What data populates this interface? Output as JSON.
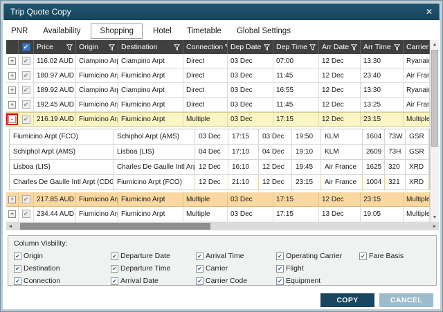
{
  "window": {
    "title": "Trip Quote Copy",
    "close": "✕"
  },
  "tabs": [
    {
      "label": "PNR",
      "selected": false
    },
    {
      "label": "Availability",
      "selected": false
    },
    {
      "label": "Shopping",
      "selected": true
    },
    {
      "label": "Hotel",
      "selected": false
    },
    {
      "label": "Timetable",
      "selected": false
    },
    {
      "label": "Global Settings",
      "selected": false
    }
  ],
  "table": {
    "select_all_checked": true,
    "columns": [
      {
        "key": "price",
        "label": "Price"
      },
      {
        "key": "origin",
        "label": "Origin"
      },
      {
        "key": "destination",
        "label": "Destination"
      },
      {
        "key": "connection",
        "label": "Connection"
      },
      {
        "key": "dep_date",
        "label": "Dep Date"
      },
      {
        "key": "dep_time",
        "label": "Dep Time"
      },
      {
        "key": "arr_date",
        "label": "Arr Date"
      },
      {
        "key": "arr_time",
        "label": "Arr Time"
      },
      {
        "key": "carrier",
        "label": "Carrier"
      }
    ],
    "rows": [
      {
        "expand": "+",
        "checked": true,
        "highlight": "none",
        "annotated": false,
        "expanded": false,
        "cells": {
          "price": "116.02 AUD",
          "origin": "Ciampino Arpt",
          "destination": "Ciampino Arpt",
          "connection": "Direct",
          "dep_date": "03 Dec",
          "dep_time": "07:00",
          "arr_date": "12 Dec",
          "arr_time": "13:30",
          "carrier": "Ryanair"
        }
      },
      {
        "expand": "+",
        "checked": true,
        "highlight": "none",
        "annotated": false,
        "expanded": false,
        "cells": {
          "price": "180.97 AUD",
          "origin": "Fiumicino Arpt",
          "destination": "Fiumicino Arpt",
          "connection": "Direct",
          "dep_date": "03 Dec",
          "dep_time": "11:45",
          "arr_date": "12 Dec",
          "arr_time": "23:40",
          "carrier": "Air France"
        }
      },
      {
        "expand": "+",
        "checked": true,
        "highlight": "none",
        "annotated": false,
        "expanded": false,
        "cells": {
          "price": "189.92 AUD",
          "origin": "Ciampino Arpt",
          "destination": "Ciampino Arpt",
          "connection": "Direct",
          "dep_date": "03 Dec",
          "dep_time": "16:55",
          "arr_date": "12 Dec",
          "arr_time": "13:30",
          "carrier": "Ryanair"
        }
      },
      {
        "expand": "+",
        "checked": true,
        "highlight": "none",
        "annotated": false,
        "expanded": false,
        "cells": {
          "price": "192.45 AUD",
          "origin": "Fiumicino Arpt",
          "destination": "Fiumicino Arpt",
          "connection": "Direct",
          "dep_date": "03 Dec",
          "dep_time": "11:45",
          "arr_date": "12 Dec",
          "arr_time": "13:25",
          "carrier": "Air France"
        }
      },
      {
        "expand": "-",
        "checked": true,
        "highlight": "yellow",
        "annotated": true,
        "expanded": true,
        "cells": {
          "price": "216.19 AUD",
          "origin": "Fiumicino Arpt",
          "destination": "Fiumicino Arpt",
          "connection": "Multiple",
          "dep_date": "03 Dec",
          "dep_time": "17:15",
          "arr_date": "12 Dec",
          "arr_time": "23:15",
          "carrier": "Multiple"
        }
      },
      {
        "expand": "+",
        "checked": true,
        "highlight": "orange",
        "annotated": false,
        "expanded": false,
        "cells": {
          "price": "217.85 AUD",
          "origin": "Fiumicino Arpt",
          "destination": "Fiumicino Arpt",
          "connection": "Multiple",
          "dep_date": "03 Dec",
          "dep_time": "17:15",
          "arr_date": "12 Dec",
          "arr_time": "23:15",
          "carrier": "Multiple"
        }
      },
      {
        "expand": "+",
        "checked": true,
        "highlight": "none",
        "annotated": false,
        "expanded": false,
        "cells": {
          "price": "234.44 AUD",
          "origin": "Fiumicino Arpt",
          "destination": "Fiumicino Arpt",
          "connection": "Multiple",
          "dep_date": "03 Dec",
          "dep_time": "17:15",
          "arr_date": "13 Dec",
          "arr_time": "19:05",
          "carrier": "Multiple"
        }
      }
    ]
  },
  "detail_table": {
    "column_keys": [
      "origin",
      "destination",
      "dep_date",
      "dep_time",
      "arr_date",
      "arr_time",
      "carrier",
      "flight",
      "equipment",
      "fare_basis"
    ],
    "rows": [
      {
        "highlight": "none",
        "cells": {
          "origin": "Fiumicino Arpt (FCO)",
          "destination": "Schiphol Arpt (AMS)",
          "dep_date": "03 Dec",
          "dep_time": "17:15",
          "arr_date": "03 Dec",
          "arr_time": "19:50",
          "carrier": "KLM",
          "flight": "1604",
          "equipment": "73W",
          "fare_basis": "GSR"
        }
      },
      {
        "highlight": "none",
        "cells": {
          "origin": "Schiphol Arpt (AMS)",
          "destination": "Lisboa (LIS)",
          "dep_date": "04 Dec",
          "dep_time": "17:10",
          "arr_date": "04 Dec",
          "arr_time": "19:10",
          "carrier": "KLM",
          "flight": "2609",
          "equipment": "73H",
          "fare_basis": "GSR"
        }
      },
      {
        "highlight": "none",
        "cells": {
          "origin": "Lisboa (LIS)",
          "destination": "Charles De Gaulle Intl Arpt (CDG)",
          "dep_date": "12 Dec",
          "dep_time": "16:10",
          "arr_date": "12 Dec",
          "arr_time": "19:45",
          "carrier": "Air France",
          "flight": "1625",
          "equipment": "320",
          "fare_basis": "XRD"
        }
      },
      {
        "highlight": "yellow",
        "cells": {
          "origin": "Charles De Gaulle Intl Arpt (CDG)",
          "destination": "Fiumicino Arpt (FCO)",
          "dep_date": "12 Dec",
          "dep_time": "21:10",
          "arr_date": "12 Dec",
          "arr_time": "23:15",
          "carrier": "Air France",
          "flight": "1004",
          "equipment": "321",
          "fare_basis": "XRD"
        }
      }
    ]
  },
  "column_visibility": {
    "label": "Column Visbility:",
    "groups": [
      [
        "Origin",
        "Destination",
        "Connection"
      ],
      [
        "Departure Date",
        "Departure Time",
        "Arrival Date"
      ],
      [
        "Arrival Time",
        "Carrier",
        "Carrier Code"
      ],
      [
        "Operating Carrier",
        "Flight",
        "Equipment"
      ],
      [
        "Fare Basis"
      ]
    ],
    "all_checked": true
  },
  "footer": {
    "copy": "COPY",
    "cancel": "CANCEL"
  },
  "colors": {
    "titlebar": "#17455C",
    "frame": "#BCCBD4",
    "header_bg": "#404040",
    "row_yellow": "#FBF4C5",
    "row_orange": "#F9D9A1",
    "accent_checkbox": "#3878BF",
    "copy_button": "#17465E",
    "cancel_button": "#9DBCCB",
    "annotation_red": "#DD0000"
  }
}
